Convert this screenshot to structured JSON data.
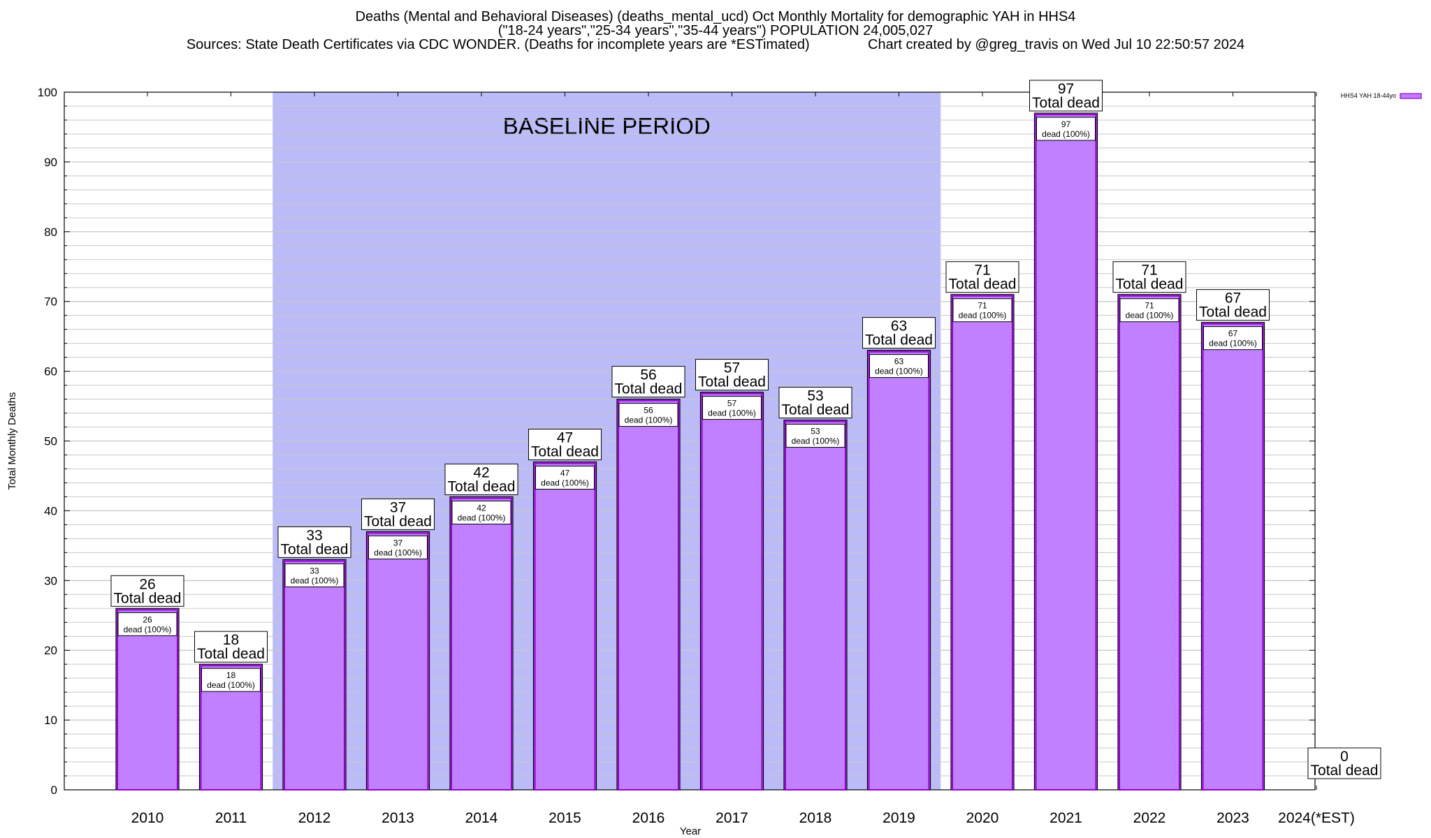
{
  "header": {
    "line1": "Deaths (Mental and Behavioral Diseases) (deaths_mental_ucd) Oct Monthly Mortality for demographic YAH in HHS4",
    "line2": "(\"18-24 years\",\"25-34 years\",\"35-44 years\") POPULATION 24,005,027",
    "line3_left": "Sources: State Death Certificates via CDC WONDER. (Deaths for incomplete years are *ESTimated)",
    "line3_right": "Chart created by @greg_travis on Wed Jul 10 22:50:57 2024"
  },
  "chart_data": {
    "type": "bar",
    "categories": [
      "2010",
      "2011",
      "2012",
      "2013",
      "2014",
      "2015",
      "2016",
      "2017",
      "2018",
      "2019",
      "2020",
      "2021",
      "2022",
      "2023",
      "2024(*EST)"
    ],
    "series": [
      {
        "name": "HHS4 YAH 18-44yo",
        "values": [
          26,
          18,
          33,
          37,
          42,
          47,
          56,
          57,
          53,
          63,
          71,
          97,
          71,
          67,
          0
        ]
      }
    ],
    "xlabel": "Year",
    "ylabel": "Total Monthly Deaths",
    "ylim": [
      0,
      100
    ],
    "yticks": [
      0,
      10,
      20,
      30,
      40,
      50,
      60,
      70,
      80,
      90,
      100
    ],
    "minor_grid_step": 2,
    "grid": true,
    "legend_position": "top-right",
    "bar_label_top": "Total dead",
    "bar_label_inner": "dead (100%)",
    "shaded_region": {
      "label": "BASELINE PERIOD",
      "from_category": "2012",
      "to_category": "2019"
    },
    "colors": {
      "bar_fill": "#c080ff",
      "bar_border": "#000000",
      "bar_inner_border": "#9400d3",
      "shade": "#bbbbf8",
      "grid": "#c8c8c8"
    }
  }
}
